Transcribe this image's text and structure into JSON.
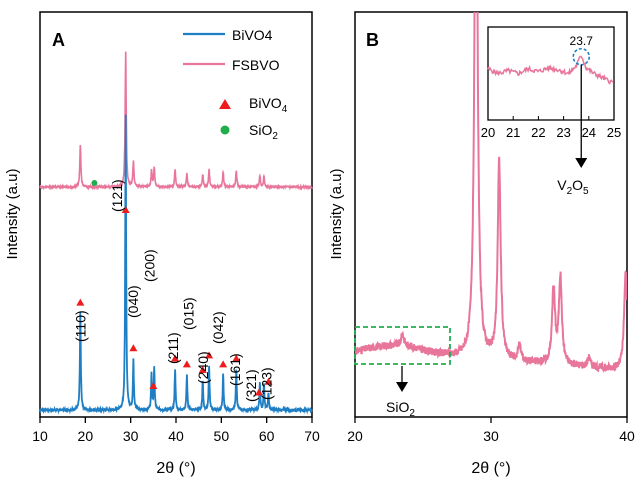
{
  "chart_data": [
    {
      "panel_label": "A",
      "type": "line",
      "xlabel": "2θ (°)",
      "ylabel": "Intensity (a.u)",
      "xlim": [
        10,
        70
      ],
      "x_ticks": [
        "10",
        "20",
        "30",
        "40",
        "50",
        "60",
        "70"
      ],
      "legend_position": "top-right",
      "colors": {
        "bivo4": "#1f7fc4",
        "fsbvo": "#e8769a",
        "bivo4_marker": "#ee1c1c",
        "sio2_marker": "#1fae4b"
      },
      "series": [
        {
          "name": "BiVO4",
          "baseline": 0.05,
          "peaks": [
            {
              "x": 18.9,
              "y": 0.33
            },
            {
              "x": 28.9,
              "y": 1.0
            },
            {
              "x": 30.6,
              "y": 0.17
            },
            {
              "x": 34.6,
              "y": 0.12
            },
            {
              "x": 35.2,
              "y": 0.14
            },
            {
              "x": 39.8,
              "y": 0.14
            },
            {
              "x": 42.4,
              "y": 0.12
            },
            {
              "x": 45.9,
              "y": 0.1
            },
            {
              "x": 47.3,
              "y": 0.15
            },
            {
              "x": 50.4,
              "y": 0.12
            },
            {
              "x": 53.3,
              "y": 0.14
            },
            {
              "x": 58.5,
              "y": 0.09
            },
            {
              "x": 59.4,
              "y": 0.09
            },
            {
              "x": 60.4,
              "y": 0.06
            }
          ]
        },
        {
          "name": "FSBVO",
          "baseline": 0.06,
          "peaks": [
            {
              "x": 18.9,
              "y": 0.31
            },
            {
              "x": 28.9,
              "y": 1.0
            },
            {
              "x": 30.6,
              "y": 0.19
            },
            {
              "x": 34.6,
              "y": 0.12
            },
            {
              "x": 35.2,
              "y": 0.14
            },
            {
              "x": 39.8,
              "y": 0.13
            },
            {
              "x": 42.4,
              "y": 0.1
            },
            {
              "x": 45.9,
              "y": 0.09
            },
            {
              "x": 47.3,
              "y": 0.13
            },
            {
              "x": 50.4,
              "y": 0.11
            },
            {
              "x": 53.3,
              "y": 0.12
            },
            {
              "x": 58.5,
              "y": 0.08
            },
            {
              "x": 59.4,
              "y": 0.08
            }
          ]
        }
      ],
      "legend": [
        {
          "label": "BiVO4",
          "symbol": "line",
          "color": "#1f7fc4"
        },
        {
          "label": "FSBVO",
          "symbol": "line",
          "color": "#e8769a"
        },
        {
          "label": "BiVO",
          "sub": "4",
          "symbol": "triangle",
          "color": "#ee1c1c"
        },
        {
          "label": "SiO",
          "sub": "2",
          "symbol": "circle",
          "color": "#1fae4b"
        }
      ],
      "bivo4_markers_x": [
        18.9,
        28.9,
        30.6,
        35.0,
        39.8,
        42.4,
        45.9,
        47.3,
        50.4,
        53.3,
        58.3,
        60.4
      ],
      "sio2_marker_x": [
        22.0
      ],
      "annotations": [
        {
          "text": "(110)",
          "x": 18.9
        },
        {
          "text": "(121)",
          "x": 27.0
        },
        {
          "text": "(040)",
          "x": 30.5
        },
        {
          "text": "(200)",
          "x": 34.2
        },
        {
          "text": "(211)",
          "x": 39.3
        },
        {
          "text": "(015)",
          "x": 42.8
        },
        {
          "text": "(240)",
          "x": 46.0
        },
        {
          "text": "(042)",
          "x": 49.3
        },
        {
          "text": "(161)",
          "x": 53.0
        },
        {
          "text": "(321)",
          "x": 56.5
        },
        {
          "text": "(123)",
          "x": 60.0
        }
      ]
    },
    {
      "panel_label": "B",
      "type": "line",
      "xlabel": "2θ (°)",
      "ylabel": "Intensity (a.u)",
      "xlim": [
        20,
        40
      ],
      "x_ticks": [
        "20",
        "30",
        "40"
      ],
      "color": "#e8769a",
      "series": [
        {
          "name": "FSBVO",
          "baseline": 0.12,
          "peaks": [
            {
              "x": 23.5,
              "y": 0.04
            },
            {
              "x": 28.9,
              "y": 2.0
            },
            {
              "x": 30.6,
              "y": 0.66
            },
            {
              "x": 32.1,
              "y": 0.05
            },
            {
              "x": 34.6,
              "y": 0.25
            },
            {
              "x": 35.1,
              "y": 0.29
            },
            {
              "x": 37.2,
              "y": 0.03
            },
            {
              "x": 39.9,
              "y": 0.33
            }
          ]
        }
      ],
      "annotations": [
        {
          "text": "SiO",
          "sub": "2"
        },
        {
          "text": "V",
          "sub": "2",
          "text2": "O",
          "sub2": "5"
        }
      ],
      "inset": {
        "xlim": [
          20,
          25
        ],
        "x_ticks": [
          "20",
          "21",
          "22",
          "23",
          "24",
          "25"
        ],
        "peak_label": "23.7",
        "peak_x": 23.7,
        "series": [
          {
            "x": 20.0,
            "y": 0.55
          },
          {
            "x": 20.4,
            "y": 0.5
          },
          {
            "x": 20.8,
            "y": 0.53
          },
          {
            "x": 21.2,
            "y": 0.5
          },
          {
            "x": 21.6,
            "y": 0.55
          },
          {
            "x": 22.0,
            "y": 0.52
          },
          {
            "x": 22.4,
            "y": 0.56
          },
          {
            "x": 22.8,
            "y": 0.54
          },
          {
            "x": 23.2,
            "y": 0.5
          },
          {
            "x": 23.5,
            "y": 0.58
          },
          {
            "x": 23.7,
            "y": 0.7
          },
          {
            "x": 23.9,
            "y": 0.56
          },
          {
            "x": 24.2,
            "y": 0.5
          },
          {
            "x": 24.5,
            "y": 0.46
          },
          {
            "x": 24.8,
            "y": 0.42
          },
          {
            "x": 25.0,
            "y": 0.4
          }
        ]
      }
    }
  ]
}
